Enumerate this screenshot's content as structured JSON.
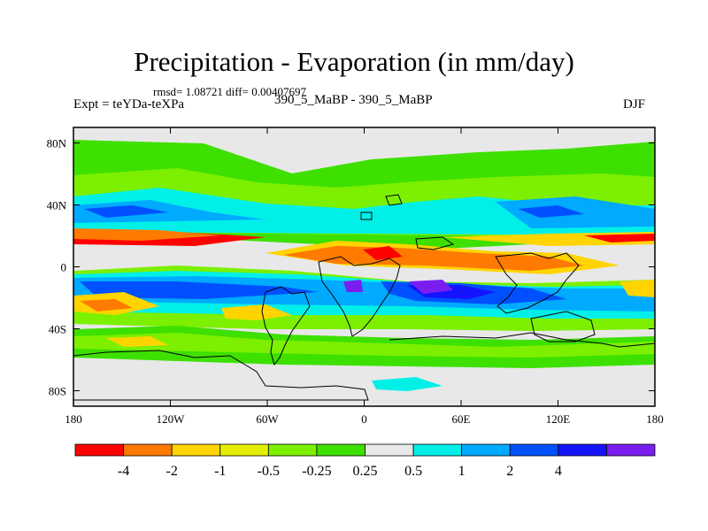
{
  "header": {
    "title": "Precipitation - Evaporation (in mm/day)",
    "stats": "rmsd= 1.08721 diff= 0.00407697",
    "expt": "Expt = teYDa-teXPa",
    "case": "390_5_MaBP - 390_5_MaBP",
    "season": "DJF"
  },
  "chart_data": {
    "type": "heatmap",
    "title": "Precipitation - Evaporation (in mm/day)",
    "x_ticks": [
      {
        "value": -180,
        "label": "180"
      },
      {
        "value": -120,
        "label": "120W"
      },
      {
        "value": -60,
        "label": "60W"
      },
      {
        "value": 0,
        "label": "0"
      },
      {
        "value": 60,
        "label": "60E"
      },
      {
        "value": 120,
        "label": "120E"
      },
      {
        "value": 180,
        "label": "180"
      }
    ],
    "y_ticks": [
      {
        "value": 80,
        "label": "80N"
      },
      {
        "value": 40,
        "label": "40N"
      },
      {
        "value": 0,
        "label": "0"
      },
      {
        "value": -40,
        "label": "40S"
      },
      {
        "value": -80,
        "label": "80S"
      }
    ],
    "xlim": [
      -180,
      180
    ],
    "ylim": [
      -90,
      90
    ],
    "colorbar": {
      "levels": [
        "-4",
        "-2",
        "-1",
        "-0.5",
        "-0.25",
        "0.25",
        "0.5",
        "1",
        "2",
        "4"
      ],
      "colors": [
        "#ff0000",
        "#ff7a00",
        "#ffd400",
        "#e6ee00",
        "#7cf000",
        "#3ee000",
        "#e8e8e8",
        "#00f0e8",
        "#00aaff",
        "#0050ff",
        "#1414ff",
        "#7a1ef0"
      ]
    }
  }
}
